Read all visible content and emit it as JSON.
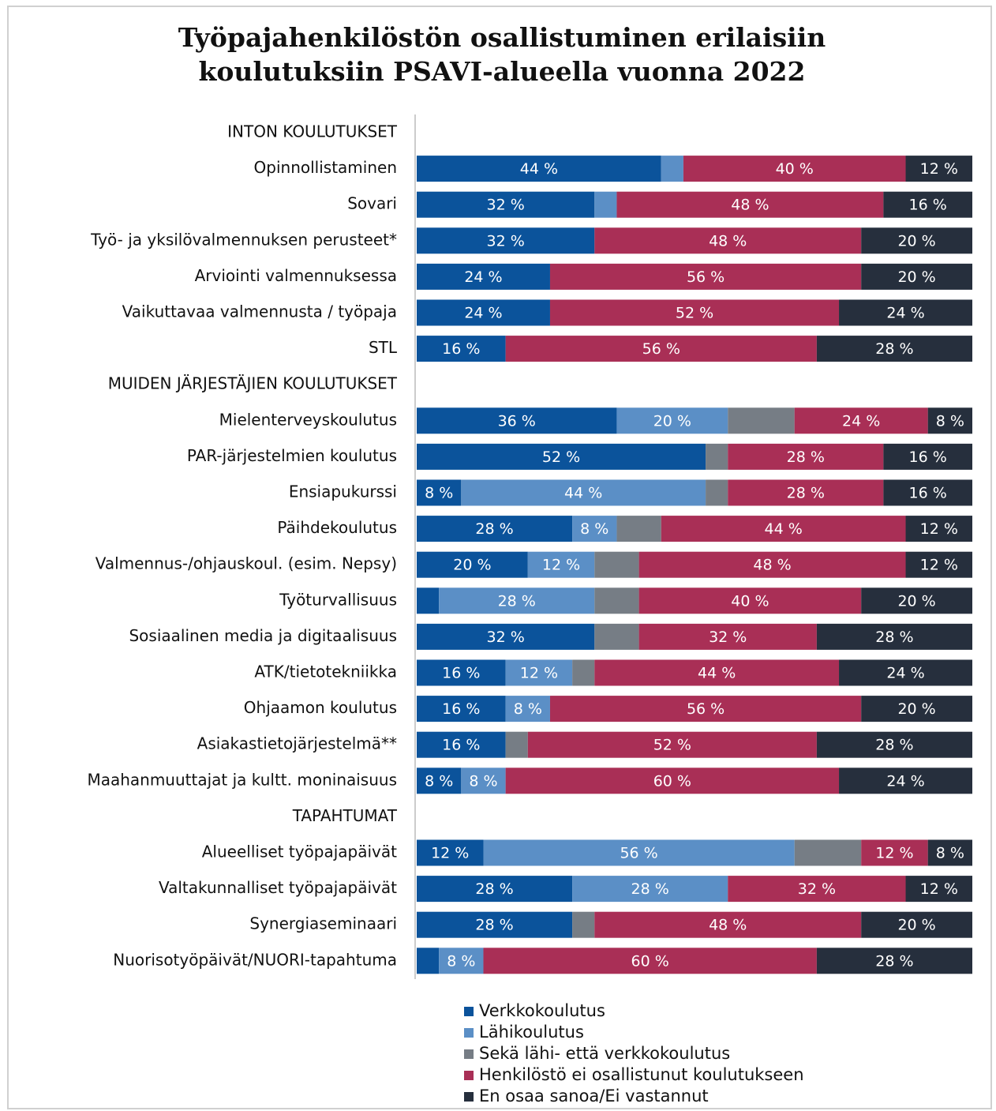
{
  "chart_data": {
    "type": "stacked-bar-horizontal",
    "title": "Työpajahenkilöstön osallistuminen erilaisiin",
    "subtitle": "koulutuksiin PSAVI-alueella vuonna 2022",
    "categories": [
      "INTON KOULUTUKSET",
      "Opinnollistaminen",
      "Sovari",
      "Työ- ja yksilövalmennuksen perusteet*",
      "Arviointi valmennuksessa",
      "Vaikuttavaa valmennusta / työpaja",
      "STL",
      "MUIDEN JÄRJESTÄJIEN KOULUTUKSET",
      "Mielenterveyskoulutus",
      "PAR-järjestelmien koulutus",
      "Ensiapukurssi",
      "Päihdekoulutus",
      "Valmennus-/ohjauskoul. (esim. Nepsy)",
      "Työturvallisuus",
      "Sosiaalinen media ja digitaalisuus",
      "ATK/tietotekniikka",
      "Ohjaamon koulutus",
      "Asiakastietojärjestelmä**",
      "Maahanmuuttajat ja kultt. moninaisuus",
      "TAPAHTUMAT",
      "Alueelliset työpajapäivät",
      "Valtakunnalliset työpajapäivät",
      "Synergiaseminaari",
      "Nuorisotyöpäivät/NUORI-tapahtuma"
    ],
    "xlim": [
      0,
      100
    ],
    "series": [
      {
        "name": "Verkkokoulutus",
        "color": "#0b539b",
        "values": [
          null,
          44,
          32,
          32,
          24,
          24,
          16,
          null,
          36,
          52,
          8,
          28,
          20,
          4,
          32,
          16,
          16,
          16,
          8,
          null,
          12,
          28,
          28,
          4
        ],
        "value_labels": [
          null,
          "44 %",
          "32 %",
          "32 %",
          "24 %",
          "24 %",
          "16 %",
          null,
          "36 %",
          "52 %",
          "8 %",
          "28 %",
          "20 %",
          null,
          "32 %",
          "16 %",
          "16 %",
          "16 %",
          "8 %",
          null,
          "12 %",
          "28 %",
          "28 %",
          null
        ]
      },
      {
        "name": "Lähikoulutus",
        "color": "#5b8fc6",
        "values": [
          null,
          4,
          4,
          0,
          0,
          0,
          0,
          null,
          20,
          0,
          44,
          8,
          12,
          28,
          0,
          12,
          8,
          0,
          8,
          null,
          56,
          28,
          0,
          8
        ],
        "value_labels": [
          null,
          null,
          null,
          null,
          null,
          null,
          null,
          null,
          "20 %",
          null,
          "44 %",
          "8 %",
          "12 %",
          "28 %",
          null,
          "12 %",
          "8 %",
          null,
          "8 %",
          null,
          "56 %",
          "28 %",
          null,
          "8 %"
        ]
      },
      {
        "name": "Sekä lähi- että verkkokoulutus",
        "color": "#767d85",
        "values": [
          null,
          0,
          0,
          0,
          0,
          0,
          0,
          null,
          12,
          4,
          4,
          8,
          8,
          8,
          8,
          4,
          0,
          4,
          0,
          null,
          12,
          0,
          4,
          0
        ],
        "value_labels": [
          null,
          null,
          null,
          null,
          null,
          null,
          null,
          null,
          null,
          null,
          null,
          null,
          null,
          null,
          null,
          null,
          null,
          null,
          null,
          null,
          null,
          null,
          null,
          null
        ]
      },
      {
        "name": "Henkilöstö ei osallistunut koulutukseen",
        "color": "#a92f56",
        "values": [
          null,
          40,
          48,
          48,
          56,
          52,
          56,
          null,
          24,
          28,
          28,
          44,
          48,
          40,
          32,
          44,
          56,
          52,
          60,
          null,
          12,
          32,
          48,
          60
        ],
        "value_labels": [
          null,
          "40 %",
          "48 %",
          "48 %",
          "56 %",
          "52 %",
          "56 %",
          null,
          "24 %",
          "28 %",
          "28 %",
          "44 %",
          "48 %",
          "40 %",
          "32 %",
          "44 %",
          "56 %",
          "52 %",
          "60 %",
          null,
          "12 %",
          "32 %",
          "48 %",
          "60 %"
        ]
      },
      {
        "name": "En osaa sanoa/Ei vastannut",
        "color": "#262f3d",
        "values": [
          null,
          12,
          16,
          20,
          20,
          24,
          28,
          null,
          8,
          16,
          16,
          12,
          12,
          20,
          28,
          24,
          20,
          28,
          24,
          null,
          8,
          12,
          20,
          28
        ],
        "value_labels": [
          null,
          "12 %",
          "16 %",
          "20 %",
          "20 %",
          "24 %",
          "28 %",
          null,
          "8 %",
          "16 %",
          "16 %",
          "12 %",
          "12 %",
          "20 %",
          "28 %",
          "24 %",
          "20 %",
          "28 %",
          "24 %",
          null,
          "8 %",
          "12 %",
          "20 %",
          "28 %"
        ]
      }
    ]
  }
}
